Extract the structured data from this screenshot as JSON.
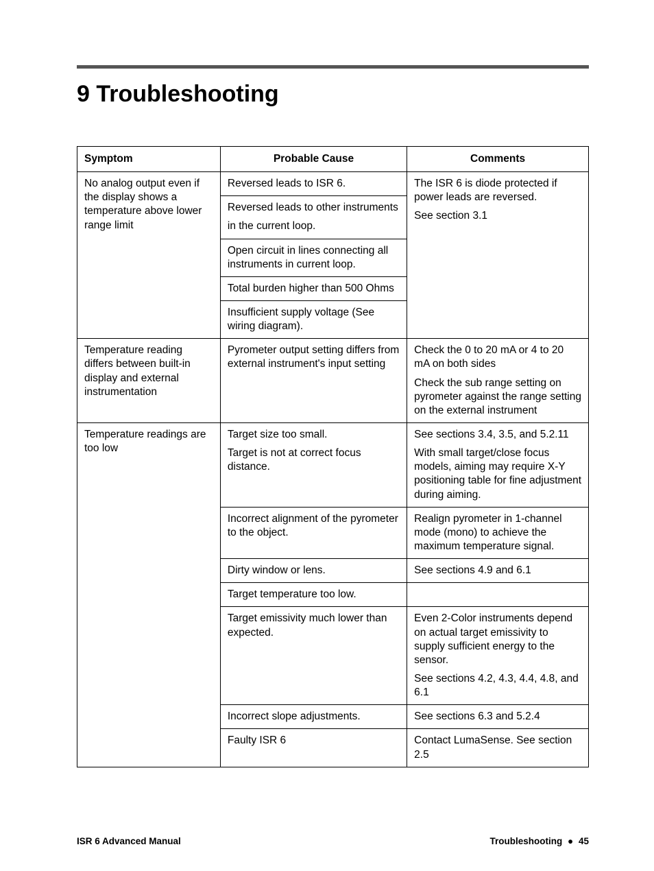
{
  "chapter": {
    "number": "9",
    "title": "Troubleshooting"
  },
  "table": {
    "headers": {
      "symptom": "Symptom",
      "cause": "Probable Cause",
      "comments": "Comments"
    },
    "rows": {
      "r1": {
        "symptom": "No analog output even if the display shows a temperature above lower range limit",
        "causes": {
          "a": "Reversed leads to ISR 6.",
          "b1": "Reversed leads to other instruments",
          "b2": "in the current loop.",
          "c": "Open circuit in lines connecting all instruments in current loop.",
          "d": "Total burden higher than 500 Ohms",
          "e": "Insufficient supply voltage (See wiring diagram)."
        },
        "comments": {
          "a": "The ISR 6 is diode protected if power leads are reversed.",
          "b": "See section 3.1"
        }
      },
      "r2": {
        "symptom": "Temperature reading differs between built-in display and external instrumentation",
        "cause": "Pyrometer output setting differs from external instrument's input setting",
        "comments": {
          "a": "Check the 0 to 20 mA or 4 to 20 mA on both sides",
          "b": "Check the sub range setting on pyrometer against the range setting on the external instrument"
        }
      },
      "r3": {
        "symptom": "Temperature readings are too low",
        "cause_a": {
          "p1": "Target size too small.",
          "p2": "Target is not at correct focus distance."
        },
        "comm_a": {
          "p1": "See sections 3.4, 3.5, and 5.2.11",
          "p2": "With small target/close focus models, aiming may require X-Y positioning table for fine adjustment during aiming."
        },
        "cause_b": "Incorrect alignment of the pyrometer to the object.",
        "comm_b": "Realign pyrometer in 1-channel mode (mono) to achieve the maximum temperature signal.",
        "cause_c": "Dirty window or lens.",
        "comm_c": "See sections 4.9 and 6.1",
        "cause_d": "Target temperature too low.",
        "cause_e": "Target emissivity much lower than expected.",
        "comm_e": {
          "p1": "Even 2-Color instruments depend on actual target emissivity to supply sufficient energy to the sensor.",
          "p2": "See sections 4.2, 4.3, 4.4, 4.8, and 6.1"
        },
        "cause_f": "Incorrect slope adjustments.",
        "comm_f": "See sections 6.3 and 5.2.4",
        "cause_g": "Faulty ISR 6",
        "comm_g": "Contact LumaSense. See section 2.5"
      }
    }
  },
  "footer": {
    "left": "ISR 6 Advanced Manual",
    "right_label": "Troubleshooting",
    "page": "45"
  }
}
